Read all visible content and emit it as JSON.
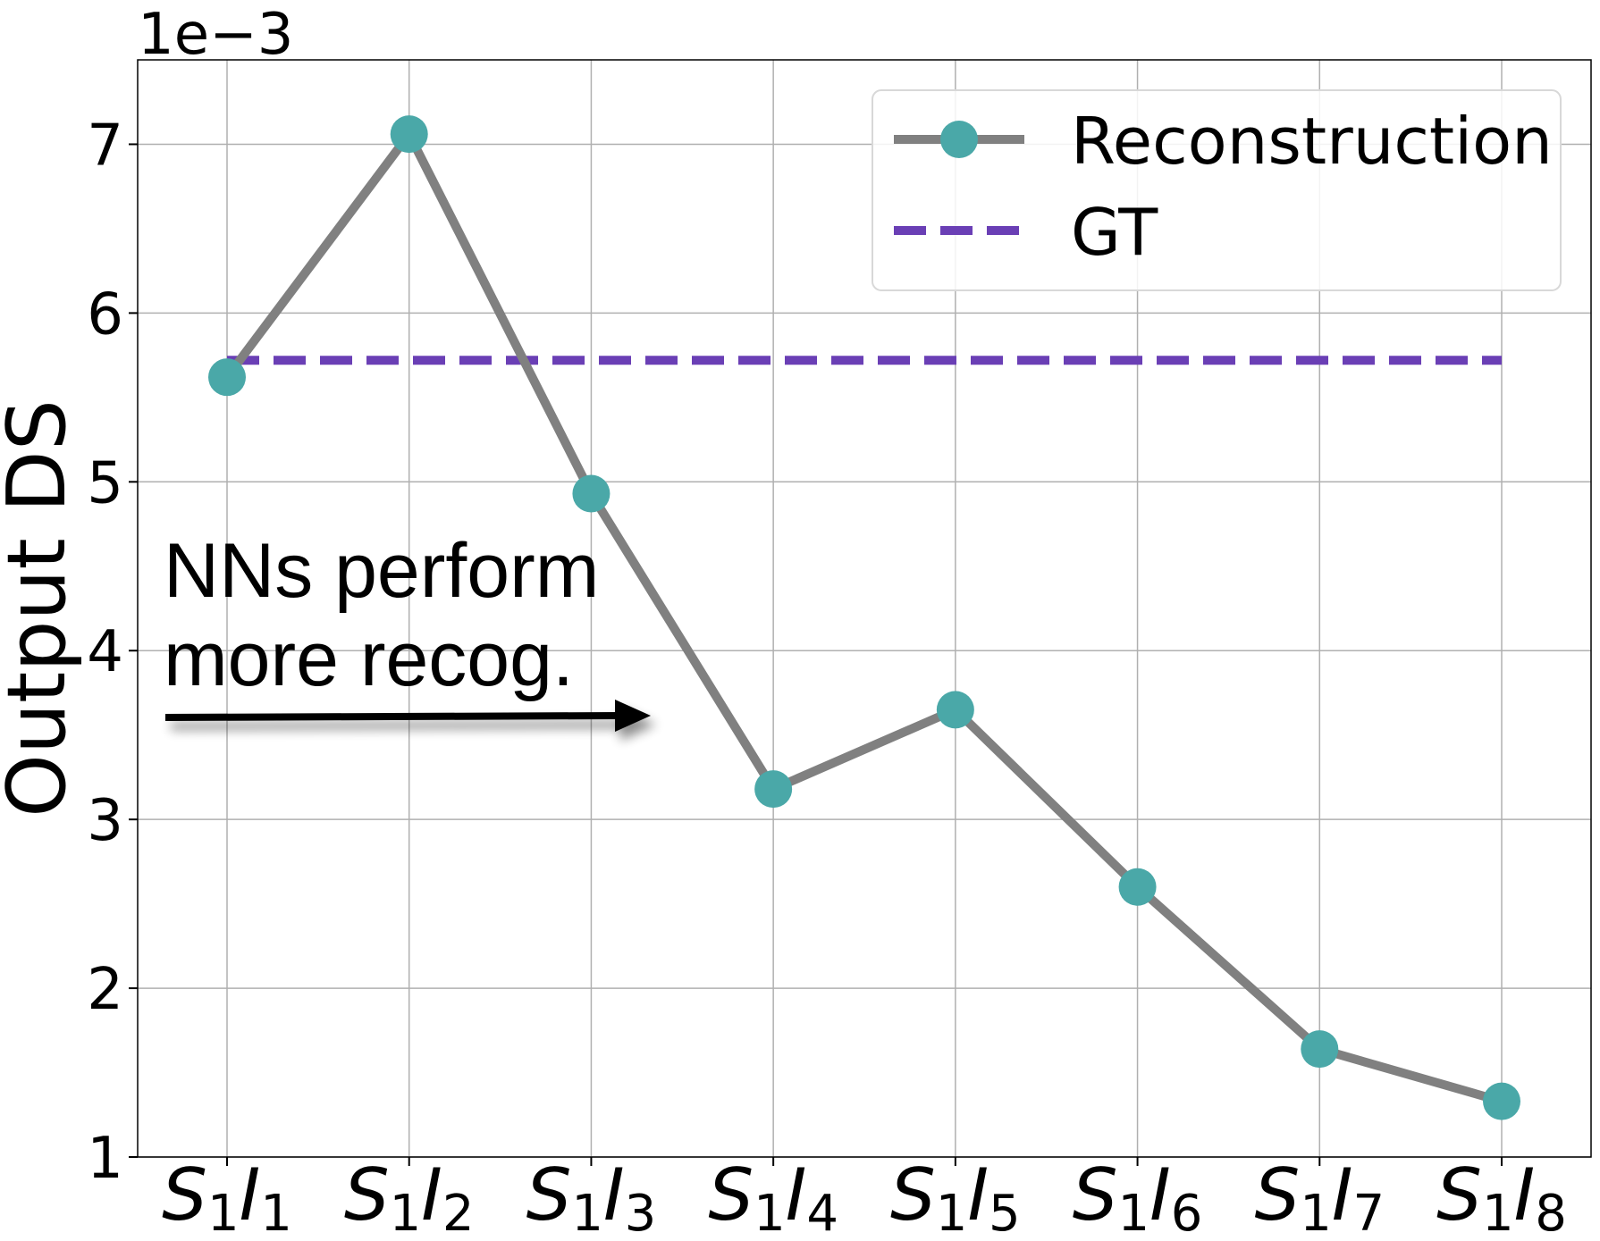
{
  "chart_data": {
    "type": "line",
    "title": "",
    "xlabel": "",
    "ylabel": "Output DS",
    "y_scale_label": "1e−3",
    "ylim": [
      1,
      7.5
    ],
    "yticks": [
      1,
      2,
      3,
      4,
      5,
      6,
      7
    ],
    "grid": true,
    "legend_position": "top-right",
    "categories": [
      {
        "base": "S",
        "sub1": "1",
        "mid": "I",
        "sub2": "1"
      },
      {
        "base": "S",
        "sub1": "1",
        "mid": "I",
        "sub2": "2"
      },
      {
        "base": "S",
        "sub1": "1",
        "mid": "I",
        "sub2": "3"
      },
      {
        "base": "S",
        "sub1": "1",
        "mid": "I",
        "sub2": "4"
      },
      {
        "base": "S",
        "sub1": "1",
        "mid": "I",
        "sub2": "5"
      },
      {
        "base": "S",
        "sub1": "1",
        "mid": "I",
        "sub2": "6"
      },
      {
        "base": "S",
        "sub1": "1",
        "mid": "I",
        "sub2": "7"
      },
      {
        "base": "S",
        "sub1": "1",
        "mid": "I",
        "sub2": "8"
      }
    ],
    "series": [
      {
        "name": "Reconstruction",
        "line_color": "#808080",
        "marker_color": "#4aa8a8",
        "values": [
          5.62,
          7.06,
          4.93,
          3.18,
          3.65,
          2.6,
          1.64,
          1.33
        ]
      },
      {
        "name": "GT",
        "line_color": "#6a3fb5",
        "style": "dashed",
        "value": 5.72
      }
    ],
    "annotation": {
      "lines": [
        "NNs perform",
        "more recog."
      ],
      "arrow": true
    }
  }
}
